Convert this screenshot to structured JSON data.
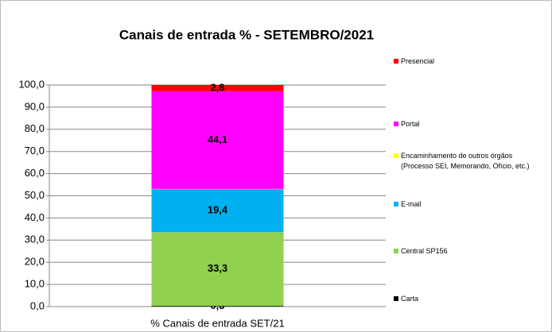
{
  "chart_data": {
    "type": "stacked_bar",
    "title": "Canais de entrada % - SETEMBRO/2021",
    "categories": [
      "% Canais de entrada SET/21"
    ],
    "series": [
      {
        "name": "Carta",
        "color": "#000000",
        "values": [
          0.3
        ],
        "value_labels": [
          "0,3"
        ]
      },
      {
        "name": "Central SP156",
        "color": "#92d050",
        "values": [
          33.3
        ],
        "value_labels": [
          "33,3"
        ]
      },
      {
        "name": "E-mail",
        "color": "#00b0f0",
        "values": [
          19.4
        ],
        "value_labels": [
          "19,4"
        ]
      },
      {
        "name": "Encaminhamento de outros órgãos (Processo SEI, Memorando, Ofício, etc.)",
        "color": "#ffff00",
        "values": [
          0.1
        ],
        "value_labels": [
          null
        ]
      },
      {
        "name": "Portal",
        "color": "#ff00ff",
        "values": [
          44.1
        ],
        "value_labels": [
          "44,1"
        ]
      },
      {
        "name": "Presencial",
        "color": "#ff0000",
        "values": [
          2.8
        ],
        "value_labels": [
          "2,8"
        ]
      }
    ],
    "ylim": [
      0,
      100
    ],
    "yticks": [
      {
        "value": 0,
        "label": "0,0"
      },
      {
        "value": 10,
        "label": "10,0"
      },
      {
        "value": 20,
        "label": "20,0"
      },
      {
        "value": 30,
        "label": "30,0"
      },
      {
        "value": 40,
        "label": "40,0"
      },
      {
        "value": 50,
        "label": "50,0"
      },
      {
        "value": 60,
        "label": "60,0"
      },
      {
        "value": 70,
        "label": "70,0"
      },
      {
        "value": 80,
        "label": "80,0"
      },
      {
        "value": 90,
        "label": "90,0"
      },
      {
        "value": 100,
        "label": "100,0"
      }
    ],
    "grid": true,
    "legend": "right"
  }
}
